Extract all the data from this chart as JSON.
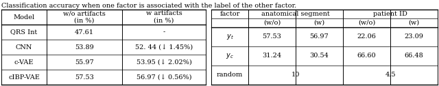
{
  "caption": "Classification accuracy when one factor is associated with the label of the other factor.",
  "left_table": {
    "col_headers": [
      "Model",
      "w/o artifacts\n(in %)",
      "w artifacts\n(in %)"
    ],
    "rows": [
      [
        "QRS Int",
        "47.61",
        "-"
      ],
      [
        "CNN",
        "53.89",
        "52. 44 (↓ 1.45%)"
      ],
      [
        "c-VAE",
        "55.97",
        "53.95 (↓ 2.02%)"
      ],
      [
        "cIBP-VAE",
        "57.53",
        "56.97 (↓ 0.56%)"
      ]
    ]
  },
  "right_table": {
    "top_headers": [
      "factor",
      "anatomical segment",
      "patient ID"
    ],
    "sub_headers": [
      "",
      "(w/o)",
      "(w)",
      "(w/o)",
      "(w)"
    ],
    "rows": [
      [
        "$y_t$",
        "57.53",
        "56.97",
        "22.06",
        "23.09"
      ],
      [
        "$y_c$",
        "31.24",
        "30.54",
        "66.60",
        "66.48"
      ],
      [
        "random",
        "10",
        "",
        "4.5",
        ""
      ]
    ]
  },
  "background_color": "#ffffff",
  "font_size": 7.0
}
